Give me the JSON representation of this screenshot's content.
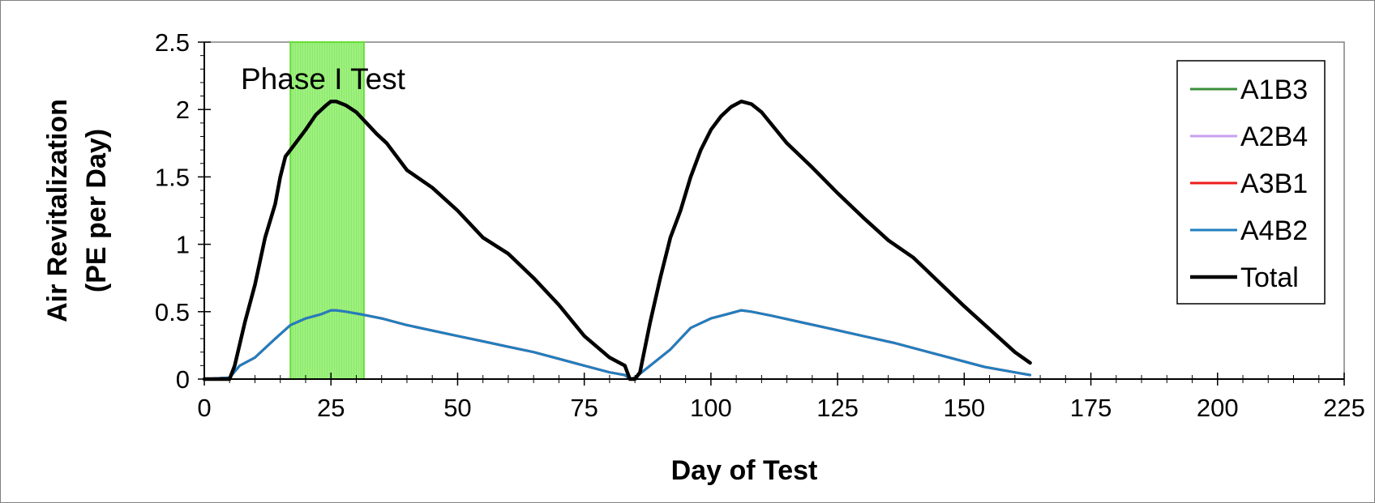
{
  "chart_data": {
    "type": "line",
    "title": "",
    "xlabel": "Day of Test",
    "ylabel_line1": "Air Revitalization",
    "ylabel_line2": "(PE per Day)",
    "xlim": [
      0,
      225
    ],
    "ylim": [
      0,
      2.5
    ],
    "x_ticks": [
      0,
      25,
      50,
      75,
      100,
      125,
      150,
      175,
      200,
      225
    ],
    "x_tick_labels": [
      "0",
      "25",
      "50",
      "75",
      "100",
      "125",
      "150",
      "175",
      "200",
      "225"
    ],
    "y_ticks": [
      0,
      0.5,
      1,
      1.5,
      2,
      2.5
    ],
    "y_tick_labels": [
      "0",
      "0.5",
      "1",
      "1.5",
      "2",
      "2.5"
    ],
    "grid": false,
    "legend_position": "top-right",
    "annotation": {
      "text": "Phase I Test",
      "x_range": [
        17,
        31.5
      ],
      "fill": "#8ef06a",
      "stroke": "#66dd33"
    },
    "series": [
      {
        "name": "A1B3",
        "color": "#3a8f3a",
        "width": 3,
        "x": [
          0,
          5,
          7,
          10,
          14,
          17,
          20,
          23,
          25,
          26,
          28,
          31,
          35,
          40,
          45,
          50,
          55,
          60,
          65,
          70,
          75,
          80,
          83,
          84,
          85,
          88,
          92,
          96,
          100,
          104,
          106,
          108,
          112,
          118,
          124,
          130,
          136,
          142,
          148,
          154,
          160,
          163
        ],
        "y": [
          0,
          0.01,
          0.1,
          0.16,
          0.3,
          0.4,
          0.45,
          0.48,
          0.51,
          0.51,
          0.5,
          0.48,
          0.45,
          0.4,
          0.36,
          0.32,
          0.28,
          0.24,
          0.2,
          0.15,
          0.1,
          0.05,
          0.03,
          0,
          0.01,
          0.1,
          0.22,
          0.38,
          0.45,
          0.49,
          0.51,
          0.5,
          0.47,
          0.42,
          0.37,
          0.32,
          0.27,
          0.21,
          0.15,
          0.09,
          0.05,
          0.03
        ]
      },
      {
        "name": "A2B4",
        "color": "#c8a0f0",
        "width": 3,
        "x": [
          0,
          5,
          7,
          10,
          14,
          17,
          20,
          23,
          25,
          26,
          28,
          31,
          35,
          40,
          45,
          50,
          55,
          60,
          65,
          70,
          75,
          80,
          83,
          84,
          85,
          88,
          92,
          96,
          100,
          104,
          106,
          108,
          112,
          118,
          124,
          130,
          136,
          142,
          148,
          154,
          160,
          163
        ],
        "y": [
          0,
          0.01,
          0.1,
          0.16,
          0.3,
          0.4,
          0.45,
          0.48,
          0.51,
          0.51,
          0.5,
          0.48,
          0.45,
          0.4,
          0.36,
          0.32,
          0.28,
          0.24,
          0.2,
          0.15,
          0.1,
          0.05,
          0.03,
          0,
          0.01,
          0.1,
          0.22,
          0.38,
          0.45,
          0.49,
          0.51,
          0.5,
          0.47,
          0.42,
          0.37,
          0.32,
          0.27,
          0.21,
          0.15,
          0.09,
          0.05,
          0.03
        ]
      },
      {
        "name": "A3B1",
        "color": "#ee1c1c",
        "width": 3,
        "x": [
          0,
          5,
          7,
          10,
          14,
          17,
          20,
          23,
          25,
          26,
          28,
          31,
          35,
          40,
          45,
          50,
          55,
          60,
          65,
          70,
          75,
          80,
          83,
          84,
          85,
          88,
          92,
          96,
          100,
          104,
          106,
          108,
          112,
          118,
          124,
          130,
          136,
          142,
          148,
          154,
          160,
          163
        ],
        "y": [
          0,
          0.01,
          0.1,
          0.16,
          0.3,
          0.4,
          0.45,
          0.48,
          0.51,
          0.51,
          0.5,
          0.48,
          0.45,
          0.4,
          0.36,
          0.32,
          0.28,
          0.24,
          0.2,
          0.15,
          0.1,
          0.05,
          0.03,
          0,
          0.01,
          0.1,
          0.22,
          0.38,
          0.45,
          0.49,
          0.51,
          0.5,
          0.47,
          0.42,
          0.37,
          0.32,
          0.27,
          0.21,
          0.15,
          0.09,
          0.05,
          0.03
        ]
      },
      {
        "name": "A4B2",
        "color": "#1f7fc0",
        "width": 3,
        "x": [
          0,
          5,
          7,
          10,
          14,
          17,
          20,
          23,
          25,
          26,
          28,
          31,
          35,
          40,
          45,
          50,
          55,
          60,
          65,
          70,
          75,
          80,
          83,
          84,
          85,
          88,
          92,
          96,
          100,
          104,
          106,
          108,
          112,
          118,
          124,
          130,
          136,
          142,
          148,
          154,
          160,
          163
        ],
        "y": [
          0,
          0.01,
          0.1,
          0.16,
          0.3,
          0.4,
          0.45,
          0.48,
          0.51,
          0.51,
          0.5,
          0.48,
          0.45,
          0.4,
          0.36,
          0.32,
          0.28,
          0.24,
          0.2,
          0.15,
          0.1,
          0.05,
          0.03,
          0,
          0.01,
          0.1,
          0.22,
          0.38,
          0.45,
          0.49,
          0.51,
          0.5,
          0.47,
          0.42,
          0.37,
          0.32,
          0.27,
          0.21,
          0.15,
          0.09,
          0.05,
          0.03
        ]
      },
      {
        "name": "Total",
        "color": "#000000",
        "width": 4.5,
        "x": [
          0,
          5,
          6,
          8,
          10,
          12,
          14,
          15,
          16,
          18,
          20,
          22,
          24,
          25,
          26,
          28,
          30,
          32,
          34,
          36,
          40,
          45,
          50,
          55,
          60,
          65,
          70,
          75,
          80,
          83,
          84,
          85,
          86,
          88,
          90,
          92,
          94,
          96,
          98,
          100,
          102,
          104,
          106,
          108,
          110,
          115,
          120,
          125,
          130,
          135,
          140,
          145,
          150,
          155,
          160,
          163
        ],
        "y": [
          0,
          0,
          0.1,
          0.42,
          0.7,
          1.05,
          1.3,
          1.5,
          1.65,
          1.75,
          1.85,
          1.96,
          2.03,
          2.06,
          2.06,
          2.03,
          1.98,
          1.9,
          1.82,
          1.75,
          1.55,
          1.42,
          1.25,
          1.05,
          0.93,
          0.75,
          0.55,
          0.32,
          0.16,
          0.1,
          0,
          0,
          0.05,
          0.42,
          0.75,
          1.05,
          1.25,
          1.5,
          1.7,
          1.85,
          1.95,
          2.02,
          2.06,
          2.04,
          1.98,
          1.75,
          1.57,
          1.38,
          1.2,
          1.03,
          0.9,
          0.72,
          0.54,
          0.37,
          0.2,
          0.12
        ]
      }
    ]
  }
}
